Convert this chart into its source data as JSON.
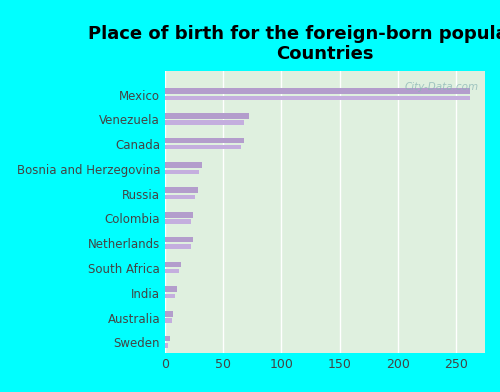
{
  "title": "Place of birth for the foreign-born population -\nCountries",
  "categories": [
    "Mexico",
    "Venezuela",
    "Canada",
    "Bosnia and Herzegovina",
    "Russia",
    "Colombia",
    "Netherlands",
    "South Africa",
    "India",
    "Australia",
    "Sweden"
  ],
  "values_main": [
    262,
    72,
    68,
    32,
    28,
    24,
    24,
    14,
    10,
    7,
    4
  ],
  "values_sub": [
    262,
    68,
    65,
    29,
    26,
    22,
    22,
    12,
    9,
    6,
    3
  ],
  "bar_color": "#b39dcc",
  "sub_bar_color": "#c4aede",
  "background_color": "#00ffff",
  "plot_bg_top": "#d8eed8",
  "plot_bg_bottom": "#e8f5e0",
  "xlabel": "",
  "ylabel": "",
  "xlim": [
    0,
    275
  ],
  "xticks": [
    0,
    50,
    100,
    150,
    200,
    250
  ],
  "title_fontsize": 13,
  "label_fontsize": 8.5,
  "tick_fontsize": 9,
  "watermark": "City-Data.com"
}
